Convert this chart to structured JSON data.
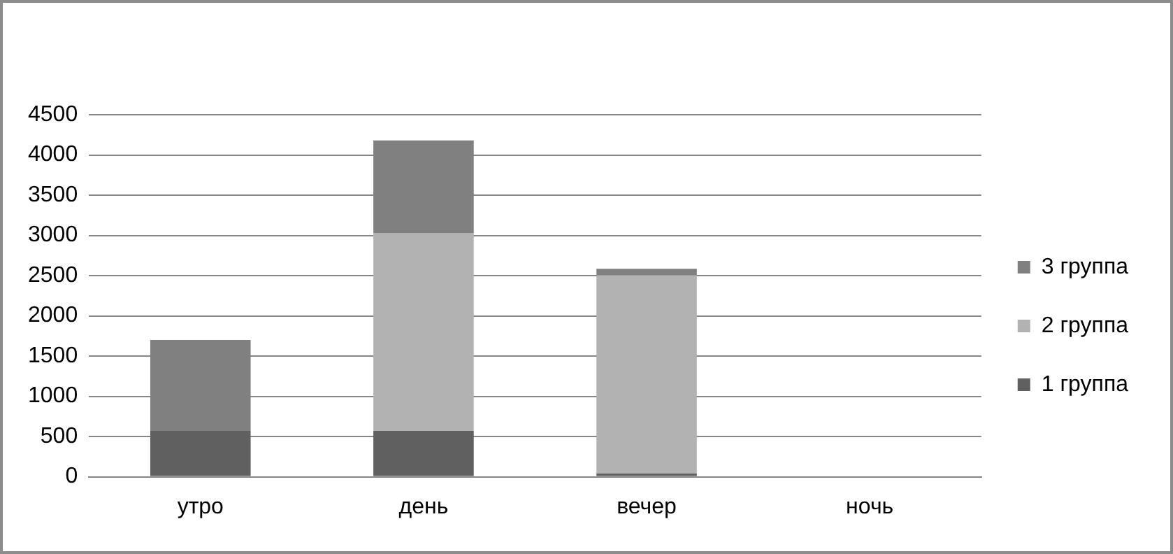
{
  "chart_data": {
    "type": "bar",
    "stacked": true,
    "categories": [
      "утро",
      "день",
      "вечер",
      "ночь"
    ],
    "series": [
      {
        "name": "1 группа",
        "color": "#606060",
        "values": [
          570,
          570,
          40,
          0
        ]
      },
      {
        "name": "2 группа",
        "color": "#b2b2b2",
        "values": [
          0,
          2460,
          2465,
          0
        ]
      },
      {
        "name": "3 группа",
        "color": "#808080",
        "values": [
          1130,
          1150,
          80,
          0
        ]
      }
    ],
    "ylim": [
      0,
      4500
    ],
    "yticks": [
      0,
      500,
      1000,
      1500,
      2000,
      2500,
      3000,
      3500,
      4000,
      4500
    ],
    "grid": "y",
    "legend": "right"
  }
}
